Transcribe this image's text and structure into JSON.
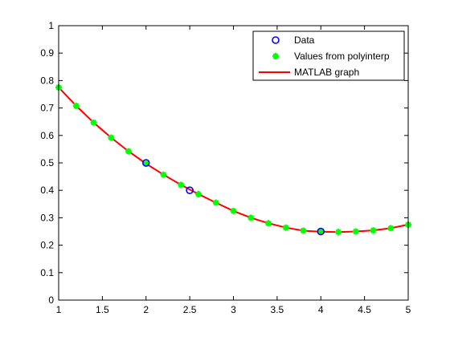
{
  "chart_data": {
    "type": "line",
    "title": "",
    "xlabel": "",
    "ylabel": "",
    "xlim": [
      1,
      5
    ],
    "ylim": [
      0,
      1
    ],
    "x_ticks": [
      1,
      1.5,
      2,
      2.5,
      3,
      3.5,
      4,
      4.5,
      5
    ],
    "y_ticks": [
      0,
      0.1,
      0.2,
      0.3,
      0.4,
      0.5,
      0.6,
      0.7,
      0.8,
      0.9,
      1
    ],
    "x_tick_labels": [
      "1",
      "1.5",
      "2",
      "2.5",
      "3",
      "3.5",
      "4",
      "4.5",
      "5"
    ],
    "y_tick_labels": [
      "0",
      "0.1",
      "0.2",
      "0.3",
      "0.4",
      "0.5",
      "0.6",
      "0.7",
      "0.8",
      "0.9",
      "1"
    ],
    "grid": false,
    "legend_position": "top-right",
    "series": [
      {
        "name": "Data",
        "marker": "circle",
        "color": "#0000ff",
        "x": [
          2,
          2.5,
          4
        ],
        "y": [
          0.5,
          0.4,
          0.25
        ]
      },
      {
        "name": "Values from polyinterp",
        "marker": "star",
        "color": "#00ff00",
        "x": [
          1.0,
          1.2,
          1.4,
          1.6,
          1.8,
          2.0,
          2.2,
          2.4,
          2.6,
          2.8,
          3.0,
          3.2,
          3.4,
          3.6,
          3.8,
          4.0,
          4.2,
          4.4,
          4.6,
          4.8,
          5.0
        ],
        "y": [
          0.775,
          0.708,
          0.647,
          0.592,
          0.542,
          0.497,
          0.457,
          0.42,
          0.386,
          0.355,
          0.325,
          0.3,
          0.28,
          0.264,
          0.253,
          0.249,
          0.248,
          0.25,
          0.254,
          0.262,
          0.275
        ]
      },
      {
        "name": "MATLAB graph",
        "marker": "line",
        "color": "#ff0000",
        "x": [
          1.0,
          1.2,
          1.4,
          1.6,
          1.8,
          2.0,
          2.2,
          2.4,
          2.6,
          2.8,
          3.0,
          3.2,
          3.4,
          3.6,
          3.8,
          4.0,
          4.2,
          4.4,
          4.6,
          4.8,
          5.0
        ],
        "y": [
          0.775,
          0.708,
          0.647,
          0.592,
          0.542,
          0.497,
          0.457,
          0.42,
          0.386,
          0.355,
          0.325,
          0.3,
          0.28,
          0.264,
          0.253,
          0.249,
          0.248,
          0.25,
          0.254,
          0.262,
          0.275
        ]
      }
    ]
  }
}
